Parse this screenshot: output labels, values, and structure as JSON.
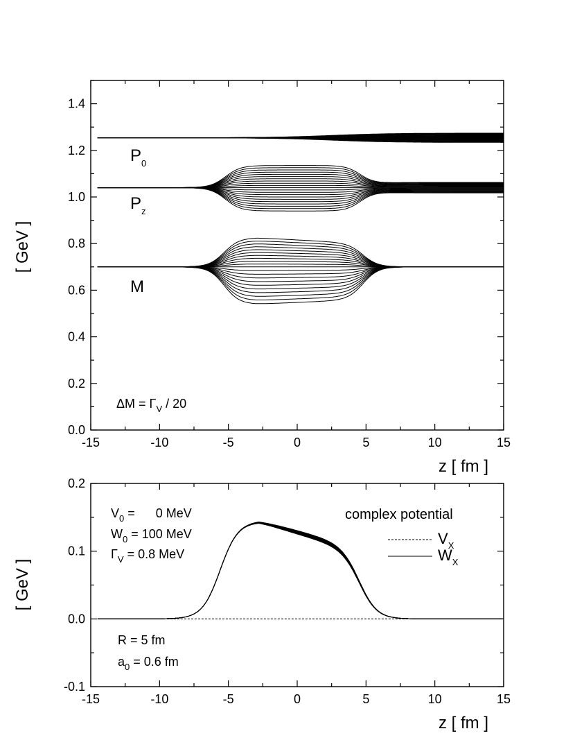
{
  "chart_data": [
    {
      "type": "line",
      "panel": "top",
      "xlabel": "z  [ fm ]",
      "ylabel": "[ GeV ]",
      "xlim": [
        -15,
        15
      ],
      "ylim": [
        0.0,
        1.5
      ],
      "xticks": [
        "-15",
        "-10",
        "-5",
        "0",
        "5",
        "10",
        "15"
      ],
      "yticks": [
        "0.0",
        "0.2",
        "0.4",
        "0.6",
        "0.8",
        "1.0",
        "1.2",
        "1.4"
      ],
      "annotation": "ΔM = Γ_V / 20",
      "annotation_main": "ΔM = Γ",
      "annotation_sub": "V",
      "annotation_tail": " / 20",
      "n_curves": 21,
      "series": [
        {
          "name": "P0",
          "label_main": "P",
          "label_sub": "0",
          "start_value": 1.254,
          "inner_spread": 0.0,
          "end_spread": 0.04,
          "pattern": "slowly fanning out from z = -5 to z = 15"
        },
        {
          "name": "Pz",
          "label_main": "P",
          "label_sub": "z",
          "start_value": 1.04,
          "inner_upper": 1.135,
          "inner_lower": 0.94,
          "end_spread": 0.045,
          "pattern": "bundle widens between z = -6 and z = 5, narrows after"
        },
        {
          "name": "M",
          "label_main": "M",
          "label_sub": "",
          "start_value": 0.7,
          "inner_upper_left": 0.825,
          "inner_upper_right": 0.8,
          "inner_lower_left": 0.54,
          "inner_lower_right": 0.56,
          "end_spread": 0.0,
          "pattern": "bundle widens between z = -6 and z = 5, collapses back to 0.7"
        }
      ]
    },
    {
      "type": "line",
      "panel": "bottom",
      "xlabel": "z  [ fm ]",
      "ylabel": "[ GeV ]",
      "xlim": [
        -15,
        15
      ],
      "ylim": [
        -0.1,
        0.2
      ],
      "xticks": [
        "-15",
        "-10",
        "-5",
        "0",
        "5",
        "10",
        "15"
      ],
      "yticks": [
        "-0.1",
        "0.0",
        "0.1",
        "0.2"
      ],
      "legend_title": "complex potential",
      "series": [
        {
          "name": "V_X",
          "label_main": "V",
          "label_sub": "X",
          "style": "dashed",
          "value": 0.0
        },
        {
          "name": "W_X",
          "label_main": "W",
          "label_sub": "X",
          "style": "solid",
          "peak_z": -2.8,
          "peak_value": 0.144,
          "value_at_z0": 0.13,
          "value_at_z4": 0.105,
          "band_width": 0.006
        }
      ],
      "parameters": [
        {
          "main": "V",
          "sub": "0",
          "rest": " =      0 MeV"
        },
        {
          "main": "W",
          "sub": "0",
          "rest": " = 100 MeV"
        },
        {
          "main": "Γ",
          "sub": "V",
          "rest": " = 0.8 MeV"
        }
      ],
      "geometry_params": [
        {
          "main": "R",
          "sub": "",
          "rest": " = 5 fm"
        },
        {
          "main": "a",
          "sub": "0",
          "rest": " = 0.6 fm"
        }
      ]
    }
  ]
}
